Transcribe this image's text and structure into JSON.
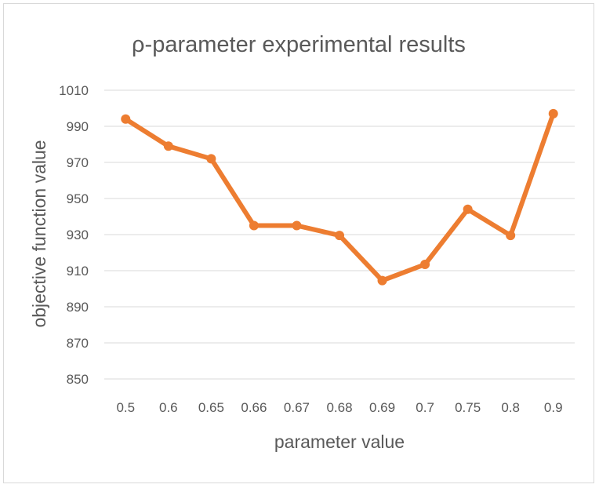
{
  "chart_data": {
    "type": "line",
    "title": "ρ-parameter experimental results",
    "xlabel": "parameter value",
    "ylabel": "objective function value",
    "categories": [
      "0.5",
      "0.6",
      "0.65",
      "0.66",
      "0.67",
      "0.68",
      "0.69",
      "0.7",
      "0.75",
      "0.8",
      "0.9"
    ],
    "series": [
      {
        "values": [
          994,
          979,
          972,
          935,
          935,
          929.5,
          904.5,
          913.5,
          944,
          929.5,
          997
        ],
        "color": "#ED7D31"
      }
    ],
    "ylim": [
      850,
      1010
    ],
    "yticks": [
      850,
      870,
      890,
      910,
      930,
      950,
      970,
      990,
      1010
    ],
    "grid": true,
    "legend": "none"
  }
}
